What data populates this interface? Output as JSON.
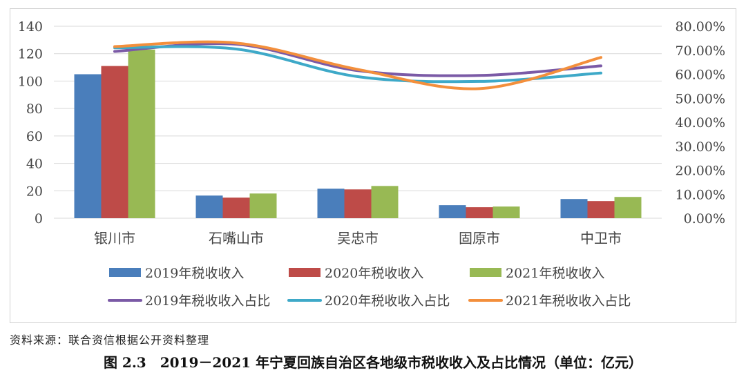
{
  "chart_data": {
    "type": "bar",
    "title": "",
    "categories": [
      "银川市",
      "石嘴山市",
      "吴忠市",
      "固原市",
      "中卫市"
    ],
    "series": [
      {
        "name": "2019年税收收入",
        "type": "bar",
        "axis": "left",
        "color": "#4a7ebb",
        "values": [
          105,
          16.5,
          21.5,
          9.5,
          14
        ]
      },
      {
        "name": "2020年税收收入",
        "type": "bar",
        "axis": "left",
        "color": "#be4b48",
        "values": [
          111,
          15,
          21,
          8,
          12.5
        ]
      },
      {
        "name": "2021年税收收入",
        "type": "bar",
        "axis": "left",
        "color": "#98b954",
        "values": [
          123,
          18,
          23.5,
          8.5,
          15.5
        ]
      },
      {
        "name": "2019年税收收入占比",
        "type": "line",
        "axis": "right",
        "color": "#7b5aa6",
        "values": [
          69.5,
          72.5,
          61.5,
          59.5,
          63.5
        ]
      },
      {
        "name": "2020年税收收入占比",
        "type": "line",
        "axis": "right",
        "color": "#3ea9c8",
        "values": [
          71,
          70.5,
          59,
          57,
          60.5
        ]
      },
      {
        "name": "2021年税收收入占比",
        "type": "line",
        "axis": "right",
        "color": "#f38f3c",
        "values": [
          71.5,
          73,
          62,
          54,
          67
        ]
      }
    ],
    "y_left": {
      "min": 0,
      "max": 140,
      "ticks": [
        "0",
        "20",
        "40",
        "60",
        "80",
        "100",
        "120",
        "140"
      ]
    },
    "y_right": {
      "min": 0,
      "max": 80,
      "ticks": [
        "0.00%",
        "10.00%",
        "20.00%",
        "30.00%",
        "40.00%",
        "50.00%",
        "60.00%",
        "70.00%",
        "80.00%"
      ]
    },
    "grid": true,
    "legend_position": "bottom"
  },
  "source_note": "资料来源：联合资信根据公开资料整理",
  "figure_caption": "图 2.3　2019－2021 年宁夏回族自治区各地级市税收收入及占比情况（单位：亿元）"
}
